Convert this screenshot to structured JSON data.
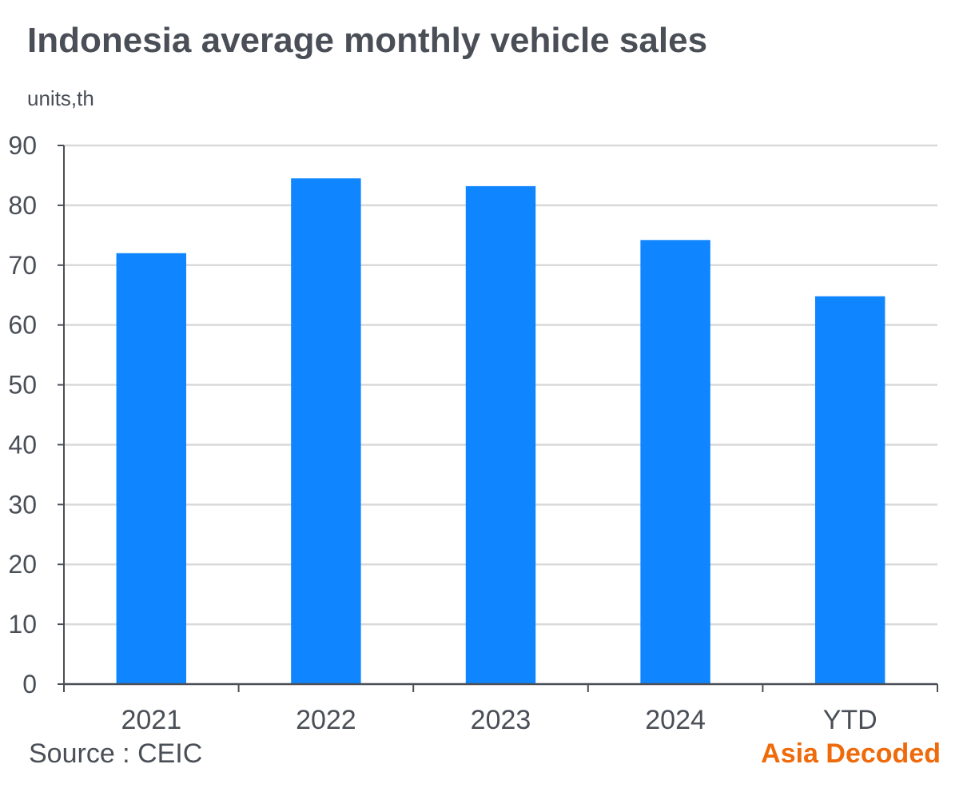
{
  "chart_data": {
    "type": "bar",
    "title": "Indonesia average monthly vehicle sales",
    "unit_label": "units,th",
    "categories": [
      "2021",
      "2022",
      "2023",
      "2024",
      "YTD"
    ],
    "values": [
      72,
      84.5,
      83.2,
      74.2,
      64.8
    ],
    "yticks": [
      0,
      10,
      20,
      30,
      40,
      50,
      60,
      70,
      80,
      90
    ],
    "ylim": [
      0,
      90
    ],
    "xlabel": "",
    "ylabel": "units,th",
    "grid": true,
    "bar_color": "#0f86ff",
    "grid_color": "#d9d9d9",
    "axis_color": "#4a4f57"
  },
  "footer": {
    "source": "Source : CEIC",
    "brand": "Asia Decoded",
    "brand_color": "#ee6a0a"
  }
}
